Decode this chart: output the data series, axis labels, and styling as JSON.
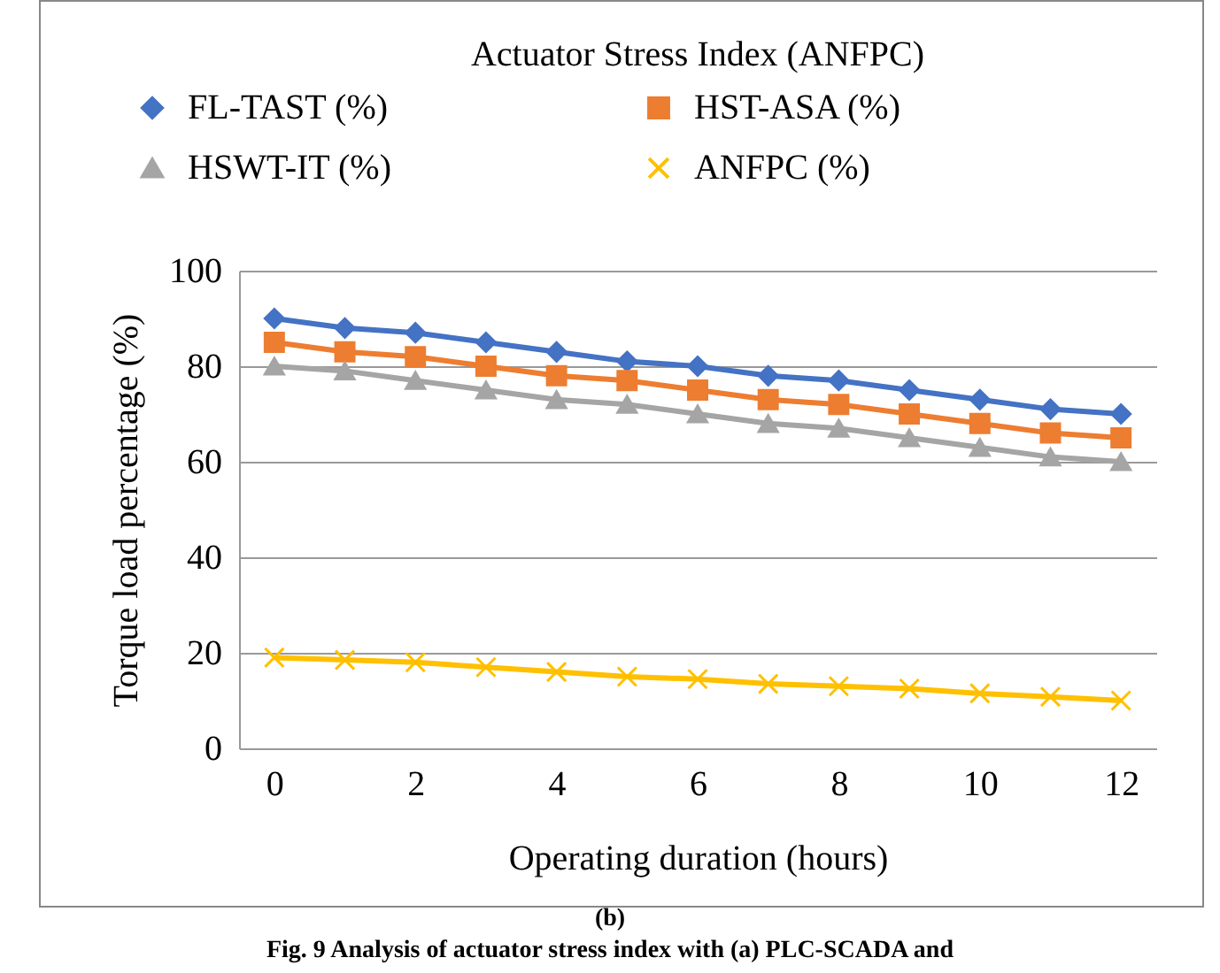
{
  "chart_data": {
    "type": "line",
    "title": "Actuator Stress Index (ANFPC)",
    "xlabel": "Operating duration (hours)",
    "ylabel": "Torque load percentage (%)",
    "x": [
      0,
      1,
      2,
      3,
      4,
      5,
      6,
      7,
      8,
      9,
      10,
      11,
      12
    ],
    "series": [
      {
        "name": "FL-TAST (%)",
        "color": "#4472c4",
        "marker": "diamond",
        "values": [
          90,
          88,
          87,
          85,
          83,
          81,
          80,
          78,
          77,
          75,
          73,
          71,
          70
        ]
      },
      {
        "name": "HST-ASA (%)",
        "color": "#ed7d31",
        "marker": "square",
        "values": [
          85,
          83,
          82,
          80,
          78,
          77,
          75,
          73,
          72,
          70,
          68,
          66,
          65
        ]
      },
      {
        "name": "HSWT-IT (%)",
        "color": "#a5a5a5",
        "marker": "triangle",
        "values": [
          80,
          79,
          77,
          75,
          73,
          72,
          70,
          68,
          67,
          65,
          63,
          61,
          60
        ]
      },
      {
        "name": "ANFPC (%)",
        "color": "#ffc000",
        "marker": "cross",
        "values": [
          19,
          18.5,
          18,
          17,
          16,
          15,
          14.5,
          13.5,
          13,
          12.5,
          11.5,
          10.8,
          10
        ]
      }
    ],
    "xlim": [
      -0.5,
      12.5
    ],
    "xticks": [
      0,
      2,
      4,
      6,
      8,
      10,
      12
    ],
    "ylim": [
      0,
      100
    ],
    "yticks": [
      0,
      20,
      40,
      60,
      80,
      100
    ],
    "grid": "y",
    "legend": "top",
    "line_style": "solid",
    "annotations": [
      "(b)",
      "Fig. 9 Analysis of actuator stress index with (a) PLC-SCADA and"
    ]
  }
}
